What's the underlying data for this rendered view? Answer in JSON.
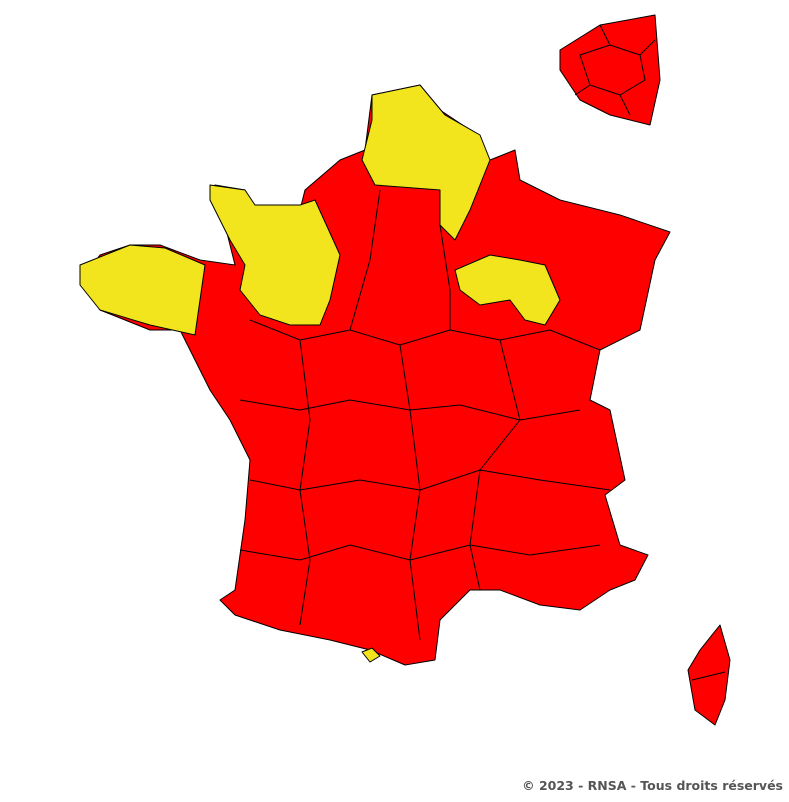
{
  "map": {
    "legend_colors": {
      "high": "#ff0000",
      "low": "#f2e51e"
    },
    "regions": [
      {
        "name": "france-metropolitan",
        "level": "high"
      },
      {
        "name": "bretagne-west",
        "level": "low"
      },
      {
        "name": "normandie-pays-de-loire-north",
        "level": "low"
      },
      {
        "name": "hauts-de-france-north",
        "level": "low"
      },
      {
        "name": "bourgogne-north",
        "level": "low"
      },
      {
        "name": "pyrenees-small",
        "level": "low"
      },
      {
        "name": "ile-de-france-inset",
        "level": "high"
      },
      {
        "name": "corse",
        "level": "high"
      }
    ]
  },
  "footer": {
    "copyright": "© 2023 - RNSA - Tous droits réservés"
  }
}
